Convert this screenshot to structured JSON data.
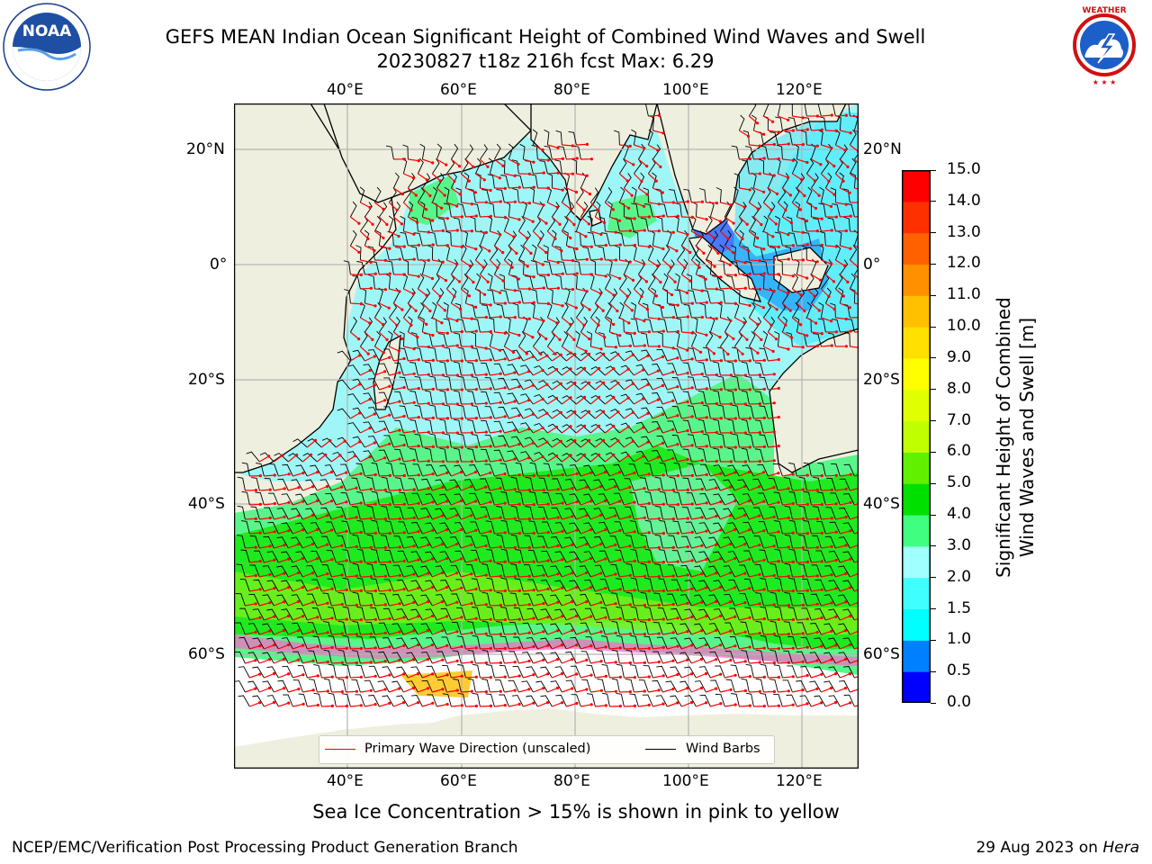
{
  "title": {
    "line1": "GEFS MEAN Indian Ocean Significant Height of Combined Wind Waves and Swell",
    "line2": "20230827 t18z 216h fcst   Max: 6.29"
  },
  "logos": {
    "left": {
      "name": "noaa-logo",
      "text": "NOAA",
      "ring_text": "NATIONAL OCEANIC AND ATMOSPHERIC ADMINISTRATION"
    },
    "right": {
      "name": "nws-logo",
      "ring_text": "NATIONAL WEATHER SERVICE"
    }
  },
  "map": {
    "lon_ticks_top": [
      "40°E",
      "60°E",
      "80°E",
      "100°E",
      "120°E"
    ],
    "lon_ticks_bottom": [
      "40°E",
      "60°E",
      "80°E",
      "100°E",
      "120°E"
    ],
    "lat_ticks_left": [
      "20°N",
      "0°",
      "20°S",
      "40°S",
      "60°S"
    ],
    "lat_ticks_right": [
      "20°N",
      "0°",
      "20°S",
      "40°S",
      "60°S"
    ],
    "lon_range": [
      20,
      130
    ],
    "lat_range": [
      -75,
      28
    ],
    "colors": {
      "land": "#efefdf",
      "ice": "#ffffff",
      "grid": "#b3b3b3",
      "wave_arrow": "#ff0000",
      "wind_barb": "#000000"
    }
  },
  "legend": {
    "wave_label": "Primary Wave Direction (unscaled)",
    "wind_label": "Wind Barbs"
  },
  "colorbar": {
    "title_line1": "Significant Height of Combined",
    "title_line2": "Wind Waves and Swell [m]",
    "ticks": [
      "0.0",
      "0.5",
      "1.0",
      "1.5",
      "2.0",
      "3.0",
      "4.0",
      "5.0",
      "6.0",
      "7.0",
      "8.0",
      "9.0",
      "10.0",
      "11.0",
      "12.0",
      "13.0",
      "14.0",
      "15.0"
    ],
    "colors": [
      "#0000ff",
      "#0080ff",
      "#00ffff",
      "#40ffff",
      "#a0ffff",
      "#40ff80",
      "#00e000",
      "#60f000",
      "#c0ff00",
      "#e0ff00",
      "#ffff00",
      "#ffe000",
      "#ffc000",
      "#ff9000",
      "#ff6000",
      "#ff3000",
      "#ff0000"
    ]
  },
  "notes": {
    "sea_ice": "Sea Ice Concentration > 15% is shown in pink to yellow"
  },
  "footer": {
    "left": "NCEP/EMC/Verification Post Processing Product Generation Branch",
    "right_prefix": "29 Aug 2023 on ",
    "right_machine": "Hera"
  }
}
